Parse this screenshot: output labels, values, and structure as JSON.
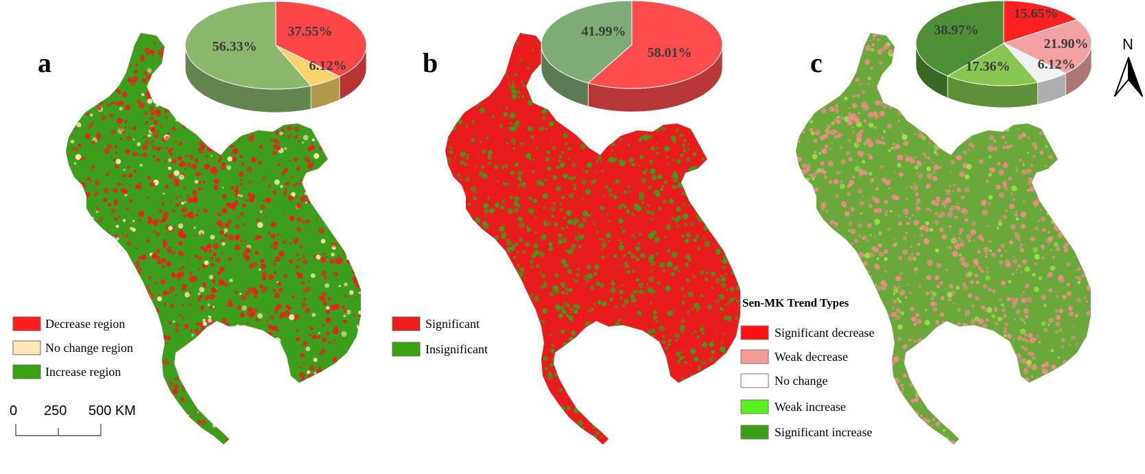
{
  "panels": [
    {
      "letter": "a",
      "legend": [
        {
          "label": "Decrease region",
          "color": "#ff1f1f"
        },
        {
          "label": "No change region",
          "color": "#fde7b8"
        },
        {
          "label": "Increase region",
          "color": "#3aa312"
        }
      ],
      "pie": [
        {
          "label": "37.55%",
          "value": 37.55,
          "color": "#ff4646"
        },
        {
          "label": "6.12%",
          "value": 6.12,
          "color": "#f7d36a"
        },
        {
          "label": "56.33%",
          "value": 56.33,
          "color": "#8bb76d"
        }
      ],
      "map_colors": {
        "base": "#3c9e1a",
        "speckle": "#ee1e1e",
        "extra": "#fde7b8"
      }
    },
    {
      "letter": "b",
      "legend": [
        {
          "label": "Significant",
          "color": "#ee1c1c"
        },
        {
          "label": "Insignificant",
          "color": "#3aa312"
        }
      ],
      "pie": [
        {
          "label": "58.01%",
          "value": 58.01,
          "color": "#ff4d4d"
        },
        {
          "label": "41.99%",
          "value": 41.99,
          "color": "#7fab76"
        }
      ],
      "map_colors": {
        "base": "#e81c1c",
        "speckle": "#3a9e1a",
        "extra": "#e81c1c"
      }
    },
    {
      "letter": "c",
      "legend_title": "Sen-MK Trend Types",
      "legend": [
        {
          "label": "Significant decrease",
          "color": "#ff1010"
        },
        {
          "label": "Weak decrease",
          "color": "#f49a9a"
        },
        {
          "label": "No change",
          "color": "#ffffff"
        },
        {
          "label": "Weak increase",
          "color": "#5cf01e"
        },
        {
          "label": "Significant increase",
          "color": "#3a9e1a"
        }
      ],
      "pie": [
        {
          "label": "15.65%",
          "value": 15.65,
          "color": "#ff2020"
        },
        {
          "label": "21.90%",
          "value": 21.9,
          "color": "#f2a2a2"
        },
        {
          "label": "6.12%",
          "value": 6.12,
          "color": "#f2f2f2"
        },
        {
          "label": "17.36%",
          "value": 17.36,
          "color": "#86c651"
        },
        {
          "label": "38.97%",
          "value": 38.97,
          "color": "#4f8f35"
        }
      ],
      "map_colors": {
        "base": "#6aa83c",
        "speckle": "#f08a8a",
        "extra": "#9ee34d"
      }
    }
  ],
  "scale_bar": {
    "labels": [
      "0",
      "250",
      "500 KM"
    ]
  },
  "north": {
    "label": "N"
  }
}
